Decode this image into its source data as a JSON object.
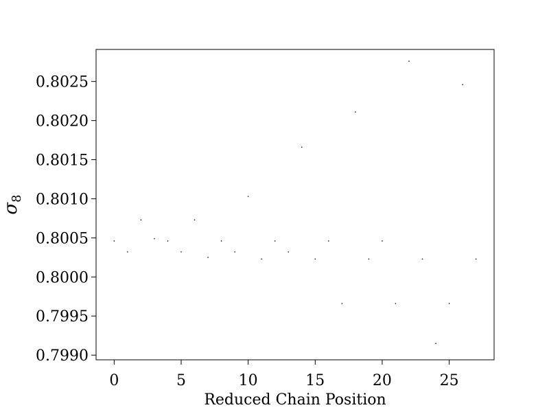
{
  "chart_data": {
    "type": "scatter",
    "xlabel": "Reduced Chain Position",
    "ylabel": "σ",
    "ylabel_subscript": "8",
    "xlim": [
      -1.35,
      28.35
    ],
    "ylim": [
      0.79894,
      0.80291
    ],
    "xticks": [
      0,
      5,
      10,
      15,
      20,
      25
    ],
    "xtick_labels": [
      "0",
      "5",
      "10",
      "15",
      "20",
      "25"
    ],
    "yticks": [
      0.799,
      0.7995,
      0.8,
      0.8005,
      0.801,
      0.8015,
      0.802,
      0.8025
    ],
    "ytick_labels": [
      "0.7990",
      "0.7995",
      "0.8000",
      "0.8005",
      "0.8010",
      "0.8015",
      "0.8020",
      "0.8025"
    ],
    "grid": false,
    "marker_color": "#000000",
    "points": [
      {
        "x": 0,
        "y": 0.80046
      },
      {
        "x": 1,
        "y": 0.80032
      },
      {
        "x": 2,
        "y": 0.80073
      },
      {
        "x": 3,
        "y": 0.80049
      },
      {
        "x": 4,
        "y": 0.80046
      },
      {
        "x": 5,
        "y": 0.80032
      },
      {
        "x": 6,
        "y": 0.80073
      },
      {
        "x": 7,
        "y": 0.80025
      },
      {
        "x": 8,
        "y": 0.80046
      },
      {
        "x": 9,
        "y": 0.80032
      },
      {
        "x": 10,
        "y": 0.80103
      },
      {
        "x": 11,
        "y": 0.80023
      },
      {
        "x": 12,
        "y": 0.80046
      },
      {
        "x": 13,
        "y": 0.80032
      },
      {
        "x": 14,
        "y": 0.80166
      },
      {
        "x": 15,
        "y": 0.80023
      },
      {
        "x": 16,
        "y": 0.80046
      },
      {
        "x": 17,
        "y": 0.79966
      },
      {
        "x": 18,
        "y": 0.80211
      },
      {
        "x": 19,
        "y": 0.80023
      },
      {
        "x": 20,
        "y": 0.80046
      },
      {
        "x": 21,
        "y": 0.79966
      },
      {
        "x": 22,
        "y": 0.80276
      },
      {
        "x": 23,
        "y": 0.80023
      },
      {
        "x": 24,
        "y": 0.79915
      },
      {
        "x": 25,
        "y": 0.79966
      },
      {
        "x": 26,
        "y": 0.80246
      },
      {
        "x": 27,
        "y": 0.80023
      }
    ]
  }
}
